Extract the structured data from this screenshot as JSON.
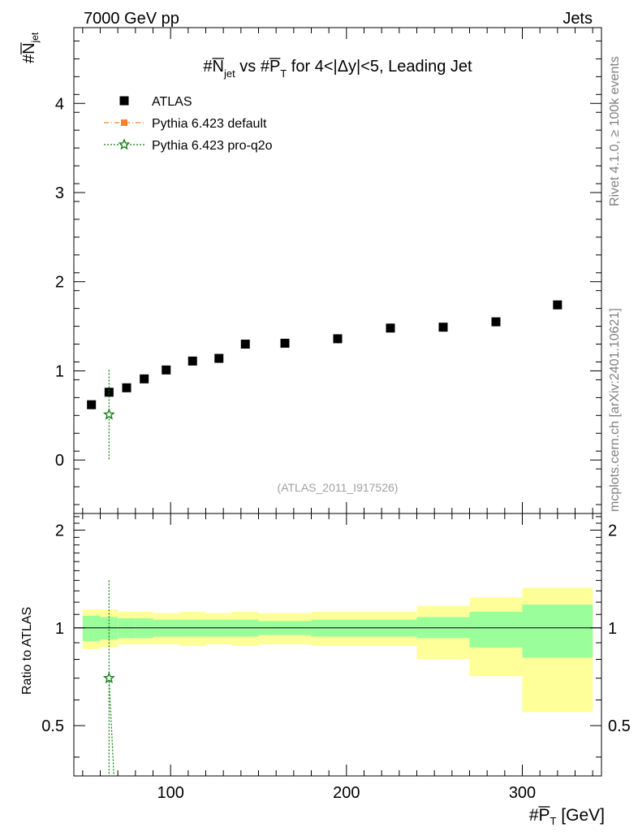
{
  "header": {
    "left": "7000 GeV pp",
    "right": "Jets"
  },
  "side_text": {
    "rivet": "Rivet 4.1.0, ≥ 100k events",
    "mcplots": "mcplots.cern.ch [arXiv:2401.10621]"
  },
  "chart_data": {
    "type": "scatter",
    "title": {
      "p1": "#N",
      "p1_over": "jet",
      "p2": " vs #P",
      "p2_over": "T",
      "p3": " for 4<|Δy|<5, Leading Jet"
    },
    "ylabel": {
      "base": "#N",
      "sub": "jet"
    },
    "xlabel": {
      "base": "#P",
      "sub": "T",
      "unit": " [GeV]"
    },
    "ratio_ylabel": "Ratio to ATLAS",
    "watermark": "(ATLAS_2011_I917526)",
    "xlim": [
      45,
      345
    ],
    "ylim": [
      -0.6,
      4.85
    ],
    "ratio_ylim": [
      0.35,
      2.25
    ],
    "x_ticks": [
      {
        "value": 100,
        "label": "100"
      },
      {
        "value": 200,
        "label": "200"
      },
      {
        "value": 300,
        "label": "300"
      }
    ],
    "y_ticks": [
      {
        "value": 0,
        "label": "0"
      },
      {
        "value": 1,
        "label": "1"
      },
      {
        "value": 2,
        "label": "2"
      },
      {
        "value": 3,
        "label": "3"
      },
      {
        "value": 4,
        "label": "4"
      }
    ],
    "ratio_ticks": [
      {
        "value": 0.5,
        "label": "0.5"
      },
      {
        "value": 1,
        "label": "1"
      },
      {
        "value": 2,
        "label": "2"
      }
    ],
    "legend": [
      {
        "label": "ATLAS",
        "marker": "square",
        "color": "#000000"
      },
      {
        "label": "Pythia 6.423 default",
        "marker": "square-dash",
        "color": "#f58231"
      },
      {
        "label": "Pythia 6.423 pro-q2o",
        "marker": "star-dot",
        "color": "#0a7a0a"
      }
    ],
    "series": [
      {
        "name": "ATLAS",
        "color": "#000000",
        "points": [
          {
            "x": 55,
            "y": 0.62
          },
          {
            "x": 65,
            "y": 0.76
          },
          {
            "x": 75,
            "y": 0.81
          },
          {
            "x": 85,
            "y": 0.91
          },
          {
            "x": 97.5,
            "y": 1.01
          },
          {
            "x": 112.5,
            "y": 1.11
          },
          {
            "x": 127.5,
            "y": 1.14
          },
          {
            "x": 142.5,
            "y": 1.3
          },
          {
            "x": 165,
            "y": 1.31
          },
          {
            "x": 195,
            "y": 1.36
          },
          {
            "x": 225,
            "y": 1.48
          },
          {
            "x": 255,
            "y": 1.49
          },
          {
            "x": 285,
            "y": 1.55
          },
          {
            "x": 320,
            "y": 1.74
          }
        ]
      },
      {
        "name": "Pythia 6.423 pro-q2o",
        "color": "#0a7a0a",
        "points": [
          {
            "x": 65,
            "y": 0.51,
            "ylow": 0.0,
            "yhigh": 1.01
          }
        ],
        "ratio_points": [
          {
            "x": 65,
            "y": 0.7,
            "ylow": 0.35,
            "yhigh": 1.4
          }
        ],
        "ratio_line_to": {
          "x": 70,
          "y": 0.2
        }
      }
    ],
    "ratio_bands": [
      {
        "x0": 50,
        "x1": 60,
        "green": [
          0.91,
          1.09
        ],
        "yellow": [
          0.86,
          1.14
        ]
      },
      {
        "x0": 60,
        "x1": 70,
        "green": [
          0.92,
          1.08
        ],
        "yellow": [
          0.87,
          1.14
        ]
      },
      {
        "x0": 70,
        "x1": 80,
        "green": [
          0.93,
          1.07
        ],
        "yellow": [
          0.89,
          1.12
        ]
      },
      {
        "x0": 80,
        "x1": 90,
        "green": [
          0.93,
          1.07
        ],
        "yellow": [
          0.89,
          1.12
        ]
      },
      {
        "x0": 90,
        "x1": 105,
        "green": [
          0.94,
          1.06
        ],
        "yellow": [
          0.89,
          1.11
        ]
      },
      {
        "x0": 105,
        "x1": 120,
        "green": [
          0.94,
          1.06
        ],
        "yellow": [
          0.88,
          1.12
        ]
      },
      {
        "x0": 120,
        "x1": 135,
        "green": [
          0.94,
          1.06
        ],
        "yellow": [
          0.89,
          1.11
        ]
      },
      {
        "x0": 135,
        "x1": 150,
        "green": [
          0.94,
          1.06
        ],
        "yellow": [
          0.88,
          1.12
        ]
      },
      {
        "x0": 150,
        "x1": 180,
        "green": [
          0.95,
          1.05
        ],
        "yellow": [
          0.89,
          1.11
        ]
      },
      {
        "x0": 180,
        "x1": 210,
        "green": [
          0.94,
          1.06
        ],
        "yellow": [
          0.88,
          1.12
        ]
      },
      {
        "x0": 210,
        "x1": 240,
        "green": [
          0.94,
          1.06
        ],
        "yellow": [
          0.88,
          1.12
        ]
      },
      {
        "x0": 240,
        "x1": 270,
        "green": [
          0.93,
          1.08
        ],
        "yellow": [
          0.8,
          1.17
        ]
      },
      {
        "x0": 270,
        "x1": 300,
        "green": [
          0.87,
          1.12
        ],
        "yellow": [
          0.71,
          1.24
        ]
      },
      {
        "x0": 300,
        "x1": 340,
        "green": [
          0.81,
          1.18
        ],
        "yellow": [
          0.55,
          1.33
        ]
      }
    ]
  },
  "colors": {
    "band_green": "#9aff9a",
    "band_yellow": "#ffff99",
    "watermark": "#a0a0a0",
    "side_text": "#808080"
  }
}
